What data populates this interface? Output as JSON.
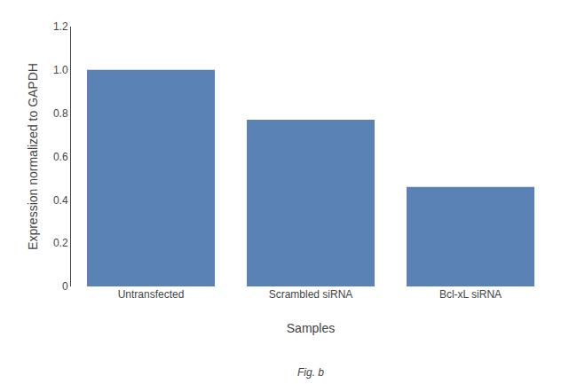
{
  "chart_data": {
    "type": "bar",
    "categories": [
      "Untransfected",
      "Scrambled siRNA",
      "Bcl-xL siRNA"
    ],
    "values": [
      1.0,
      0.77,
      0.46
    ],
    "color": "#5b82b5",
    "xlabel": "Samples",
    "ylabel": "Expression normalized to GAPDH",
    "ylim": [
      0,
      1.2
    ],
    "yticks": [
      0,
      0.2,
      0.4,
      0.6,
      0.8,
      {
        "value": 1.0,
        "label": "1.0"
      },
      1.2
    ],
    "grid": false,
    "annotations": [
      "Fig. b"
    ]
  }
}
